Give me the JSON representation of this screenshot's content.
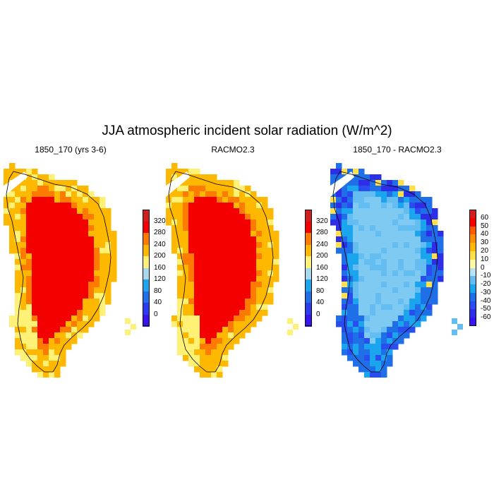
{
  "figure": {
    "title": "JJA atmospheric incident solar radiation (W/m^2)"
  },
  "panels": [
    {
      "title": "1850_170 (yrs 3-6)",
      "scheme": "abs",
      "colorbar": {
        "labels": [
          "320",
          "280",
          "240",
          "200",
          "160",
          "120",
          "80",
          "40",
          "0"
        ],
        "colors": [
          "#d11f1f",
          "#f50000",
          "#ff7a00",
          "#ffb800",
          "#fff176",
          "#a8d8f0",
          "#1aa5ee",
          "#1e6fe8",
          "#2b3cf0",
          "#3a14f0"
        ]
      }
    },
    {
      "title": "RACMO2.3",
      "scheme": "abs",
      "colorbar": {
        "labels": [
          "320",
          "280",
          "240",
          "200",
          "160",
          "120",
          "80",
          "40",
          "0"
        ],
        "colors": [
          "#d11f1f",
          "#f50000",
          "#ff7a00",
          "#ffb800",
          "#fff176",
          "#a8d8f0",
          "#1aa5ee",
          "#1e6fe8",
          "#2b3cf0",
          "#3a14f0"
        ]
      }
    },
    {
      "title": "1850_170 - RACMO2.3",
      "scheme": "diff",
      "colorbar": {
        "labels": [
          "60",
          "50",
          "40",
          "30",
          "20",
          "10",
          "0",
          "-10",
          "-20",
          "-30",
          "-40",
          "-50",
          "-60"
        ],
        "colors": [
          "#d11f1f",
          "#f50000",
          "#ff5a00",
          "#ff8c00",
          "#ffb800",
          "#ffe04a",
          "#fff9a8",
          "#b9e3f5",
          "#63bdf0",
          "#1aa5ee",
          "#1e6fe8",
          "#2a4df0",
          "#2e2ee8",
          "#3a14f0"
        ]
      }
    }
  ]
}
